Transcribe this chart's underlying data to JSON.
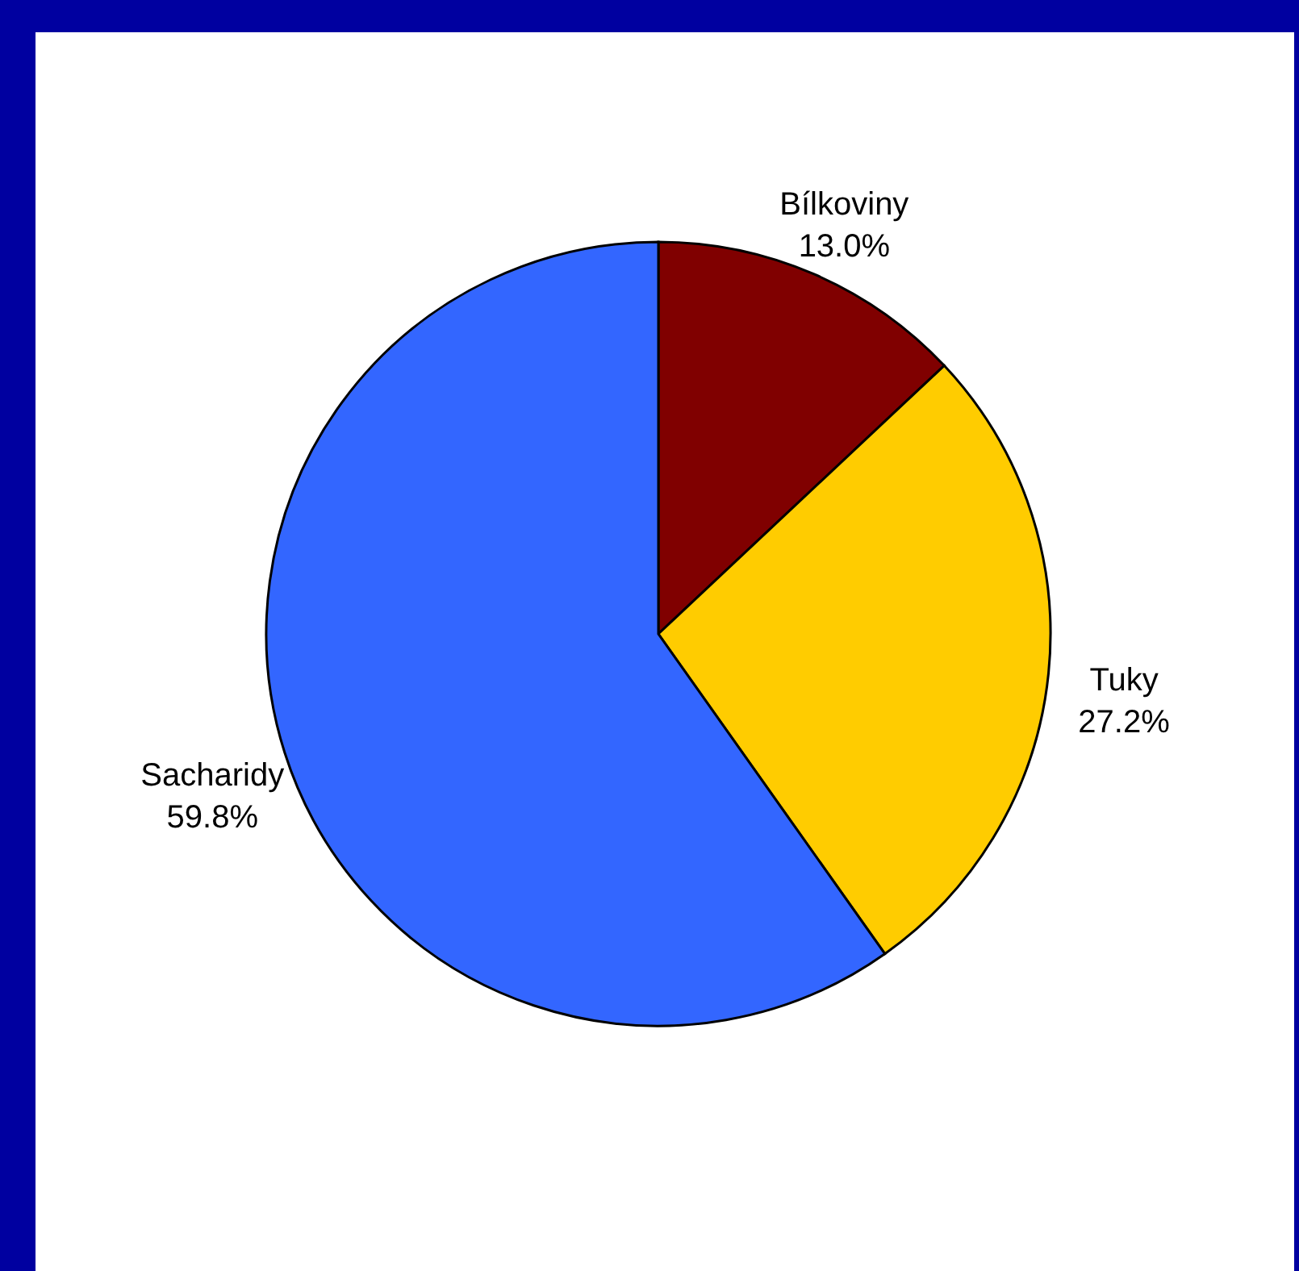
{
  "chart_data": {
    "type": "pie",
    "categories": [
      "Bílkoviny",
      "Tuky",
      "Sacharidy"
    ],
    "values": [
      13.0,
      27.2,
      59.8
    ],
    "colors": [
      "#800000",
      "#ffcc00",
      "#3366ff"
    ],
    "value_labels": [
      "13.0%",
      "27.2%",
      "59.8%"
    ]
  }
}
